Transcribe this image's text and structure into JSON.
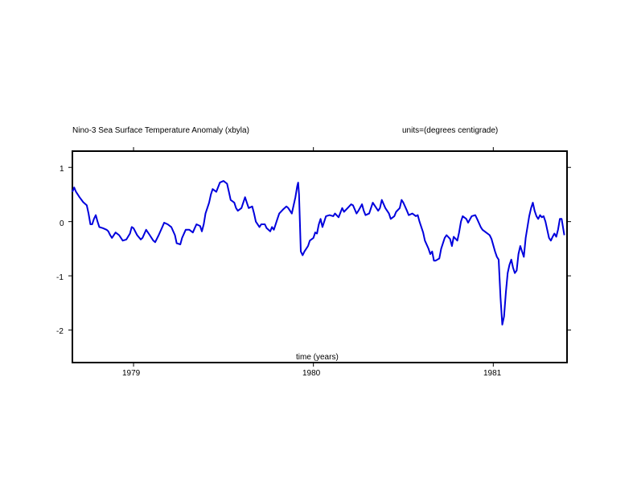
{
  "chart_data": {
    "type": "line",
    "title": "Nino-3 Sea Surface Temperature Anomaly (xbyla)",
    "units": "units=(degrees centigrade)",
    "xlabel": "time (years)",
    "ylabel": "",
    "xlim": [
      1978.66,
      1981.41
    ],
    "ylim": [
      -2.6,
      1.3
    ],
    "x_ticks": [
      {
        "value": 1979,
        "label": "1979"
      },
      {
        "value": 1980,
        "label": "1980"
      },
      {
        "value": 1981,
        "label": "1981"
      }
    ],
    "y_ticks": [
      {
        "value": 1,
        "label": "1"
      },
      {
        "value": 0,
        "label": "0"
      },
      {
        "value": -1,
        "label": "-1"
      },
      {
        "value": -2,
        "label": "-2"
      }
    ],
    "grid": false,
    "series": [
      {
        "color": "#0000dd",
        "points": [
          [
            1978.66,
            0.55
          ],
          [
            1978.67,
            0.63
          ],
          [
            1978.68,
            0.55
          ],
          [
            1978.7,
            0.45
          ],
          [
            1978.72,
            0.36
          ],
          [
            1978.74,
            0.3
          ],
          [
            1978.75,
            0.15
          ],
          [
            1978.76,
            -0.05
          ],
          [
            1978.77,
            -0.05
          ],
          [
            1978.78,
            0.05
          ],
          [
            1978.79,
            0.12
          ],
          [
            1978.8,
            0.0
          ],
          [
            1978.81,
            -0.1
          ],
          [
            1978.83,
            -0.12
          ],
          [
            1978.85,
            -0.15
          ],
          [
            1978.86,
            -0.18
          ],
          [
            1978.87,
            -0.25
          ],
          [
            1978.88,
            -0.3
          ],
          [
            1978.9,
            -0.2
          ],
          [
            1978.92,
            -0.25
          ],
          [
            1978.94,
            -0.35
          ],
          [
            1978.96,
            -0.33
          ],
          [
            1978.98,
            -0.22
          ],
          [
            1978.99,
            -0.1
          ],
          [
            1979.0,
            -0.12
          ],
          [
            1979.02,
            -0.25
          ],
          [
            1979.04,
            -0.33
          ],
          [
            1979.05,
            -0.3
          ],
          [
            1979.07,
            -0.15
          ],
          [
            1979.09,
            -0.25
          ],
          [
            1979.11,
            -0.35
          ],
          [
            1979.12,
            -0.38
          ],
          [
            1979.14,
            -0.25
          ],
          [
            1979.16,
            -0.1
          ],
          [
            1979.17,
            -0.02
          ],
          [
            1979.19,
            -0.05
          ],
          [
            1979.21,
            -0.1
          ],
          [
            1979.23,
            -0.25
          ],
          [
            1979.24,
            -0.4
          ],
          [
            1979.26,
            -0.42
          ],
          [
            1979.27,
            -0.3
          ],
          [
            1979.29,
            -0.15
          ],
          [
            1979.31,
            -0.15
          ],
          [
            1979.33,
            -0.2
          ],
          [
            1979.34,
            -0.12
          ],
          [
            1979.35,
            -0.05
          ],
          [
            1979.37,
            -0.08
          ],
          [
            1979.38,
            -0.18
          ],
          [
            1979.39,
            -0.05
          ],
          [
            1979.4,
            0.15
          ],
          [
            1979.42,
            0.35
          ],
          [
            1979.43,
            0.5
          ],
          [
            1979.44,
            0.6
          ],
          [
            1979.46,
            0.55
          ],
          [
            1979.48,
            0.72
          ],
          [
            1979.5,
            0.75
          ],
          [
            1979.52,
            0.7
          ],
          [
            1979.53,
            0.55
          ],
          [
            1979.54,
            0.4
          ],
          [
            1979.56,
            0.35
          ],
          [
            1979.57,
            0.25
          ],
          [
            1979.58,
            0.2
          ],
          [
            1979.6,
            0.25
          ],
          [
            1979.62,
            0.45
          ],
          [
            1979.63,
            0.35
          ],
          [
            1979.64,
            0.25
          ],
          [
            1979.66,
            0.28
          ],
          [
            1979.67,
            0.15
          ],
          [
            1979.68,
            0.0
          ],
          [
            1979.7,
            -0.1
          ],
          [
            1979.71,
            -0.05
          ],
          [
            1979.73,
            -0.05
          ],
          [
            1979.74,
            -0.12
          ],
          [
            1979.76,
            -0.18
          ],
          [
            1979.77,
            -0.1
          ],
          [
            1979.78,
            -0.15
          ],
          [
            1979.8,
            0.05
          ],
          [
            1979.81,
            0.15
          ],
          [
            1979.83,
            0.22
          ],
          [
            1979.85,
            0.28
          ],
          [
            1979.86,
            0.25
          ],
          [
            1979.88,
            0.15
          ],
          [
            1979.9,
            0.45
          ],
          [
            1979.91,
            0.65
          ],
          [
            1979.915,
            0.72
          ],
          [
            1979.92,
            0.5
          ],
          [
            1979.93,
            -0.55
          ],
          [
            1979.94,
            -0.62
          ],
          [
            1979.95,
            -0.55
          ],
          [
            1979.97,
            -0.45
          ],
          [
            1979.98,
            -0.35
          ],
          [
            1980.0,
            -0.3
          ],
          [
            1980.01,
            -0.2
          ],
          [
            1980.02,
            -0.22
          ],
          [
            1980.03,
            -0.05
          ],
          [
            1980.04,
            0.05
          ],
          [
            1980.05,
            -0.1
          ],
          [
            1980.07,
            0.1
          ],
          [
            1980.09,
            0.12
          ],
          [
            1980.11,
            0.1
          ],
          [
            1980.12,
            0.15
          ],
          [
            1980.14,
            0.08
          ],
          [
            1980.16,
            0.25
          ],
          [
            1980.17,
            0.18
          ],
          [
            1980.19,
            0.25
          ],
          [
            1980.21,
            0.32
          ],
          [
            1980.22,
            0.3
          ],
          [
            1980.24,
            0.15
          ],
          [
            1980.25,
            0.2
          ],
          [
            1980.27,
            0.32
          ],
          [
            1980.28,
            0.2
          ],
          [
            1980.29,
            0.12
          ],
          [
            1980.31,
            0.15
          ],
          [
            1980.33,
            0.35
          ],
          [
            1980.34,
            0.3
          ],
          [
            1980.36,
            0.2
          ],
          [
            1980.37,
            0.25
          ],
          [
            1980.38,
            0.4
          ],
          [
            1980.4,
            0.25
          ],
          [
            1980.42,
            0.15
          ],
          [
            1980.43,
            0.05
          ],
          [
            1980.45,
            0.1
          ],
          [
            1980.46,
            0.18
          ],
          [
            1980.48,
            0.25
          ],
          [
            1980.49,
            0.4
          ],
          [
            1980.5,
            0.35
          ],
          [
            1980.52,
            0.2
          ],
          [
            1980.53,
            0.12
          ],
          [
            1980.55,
            0.15
          ],
          [
            1980.57,
            0.1
          ],
          [
            1980.58,
            0.12
          ],
          [
            1980.59,
            0.0
          ],
          [
            1980.61,
            -0.2
          ],
          [
            1980.62,
            -0.35
          ],
          [
            1980.64,
            -0.5
          ],
          [
            1980.65,
            -0.6
          ],
          [
            1980.66,
            -0.55
          ],
          [
            1980.67,
            -0.72
          ],
          [
            1980.68,
            -0.72
          ],
          [
            1980.7,
            -0.68
          ],
          [
            1980.71,
            -0.5
          ],
          [
            1980.73,
            -0.3
          ],
          [
            1980.74,
            -0.25
          ],
          [
            1980.76,
            -0.32
          ],
          [
            1980.77,
            -0.45
          ],
          [
            1980.78,
            -0.28
          ],
          [
            1980.8,
            -0.35
          ],
          [
            1980.81,
            -0.2
          ],
          [
            1980.82,
            0.0
          ],
          [
            1980.83,
            0.1
          ],
          [
            1980.85,
            0.05
          ],
          [
            1980.86,
            -0.02
          ],
          [
            1980.88,
            0.1
          ],
          [
            1980.9,
            0.12
          ],
          [
            1980.91,
            0.05
          ],
          [
            1980.93,
            -0.1
          ],
          [
            1980.94,
            -0.15
          ],
          [
            1980.96,
            -0.2
          ],
          [
            1980.98,
            -0.25
          ],
          [
            1980.99,
            -0.32
          ],
          [
            1981.01,
            -0.55
          ],
          [
            1981.02,
            -0.65
          ],
          [
            1981.03,
            -0.7
          ],
          [
            1981.04,
            -1.4
          ],
          [
            1981.05,
            -1.9
          ],
          [
            1981.06,
            -1.75
          ],
          [
            1981.07,
            -1.3
          ],
          [
            1981.08,
            -0.95
          ],
          [
            1981.09,
            -0.8
          ],
          [
            1981.1,
            -0.7
          ],
          [
            1981.11,
            -0.85
          ],
          [
            1981.12,
            -0.95
          ],
          [
            1981.13,
            -0.9
          ],
          [
            1981.14,
            -0.6
          ],
          [
            1981.15,
            -0.45
          ],
          [
            1981.16,
            -0.55
          ],
          [
            1981.17,
            -0.65
          ],
          [
            1981.18,
            -0.3
          ],
          [
            1981.19,
            -0.1
          ],
          [
            1981.2,
            0.1
          ],
          [
            1981.21,
            0.25
          ],
          [
            1981.22,
            0.35
          ],
          [
            1981.23,
            0.2
          ],
          [
            1981.24,
            0.1
          ],
          [
            1981.25,
            0.05
          ],
          [
            1981.26,
            0.12
          ],
          [
            1981.27,
            0.08
          ],
          [
            1981.28,
            0.1
          ],
          [
            1981.29,
            0.0
          ],
          [
            1981.3,
            -0.15
          ],
          [
            1981.31,
            -0.3
          ],
          [
            1981.32,
            -0.35
          ],
          [
            1981.33,
            -0.28
          ],
          [
            1981.34,
            -0.22
          ],
          [
            1981.35,
            -0.28
          ],
          [
            1981.36,
            -0.15
          ],
          [
            1981.37,
            0.05
          ],
          [
            1981.38,
            0.05
          ],
          [
            1981.39,
            -0.15
          ],
          [
            1981.395,
            -0.25
          ]
        ]
      }
    ]
  }
}
